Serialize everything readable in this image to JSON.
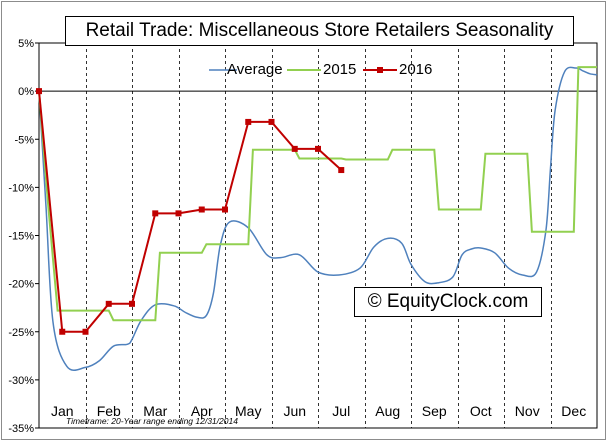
{
  "chart_data": {
    "type": "line",
    "title": "Retail Trade: Miscellaneous Store Retailers Seasonality",
    "categories": [
      "Jan",
      "Feb",
      "Mar",
      "Apr",
      "May",
      "Jun",
      "Jul",
      "Aug",
      "Sep",
      "Oct",
      "Nov",
      "Dec"
    ],
    "ylim": [
      -35,
      5
    ],
    "yticks": [
      5,
      0,
      -5,
      -10,
      -15,
      -20,
      -25,
      -30,
      -35
    ],
    "ytick_labels": [
      "5%",
      "0%",
      "-5%",
      "-10%",
      "-15%",
      "-20%",
      "-25%",
      "-30%",
      "-35%"
    ],
    "grid": "vertical dashed at month boundaries",
    "legend_position": "top-center",
    "series": [
      {
        "name": "Average",
        "color": "#4f81bd",
        "style": "smooth line",
        "x": [
          0.0,
          0.15,
          0.3,
          0.6,
          1.0,
          1.3,
          1.6,
          1.9,
          2.0,
          2.2,
          2.5,
          2.9,
          3.15,
          3.4,
          3.6,
          3.75,
          3.9,
          4.1,
          4.5,
          4.9,
          5.2,
          5.6,
          6.0,
          6.45,
          6.9,
          7.2,
          7.5,
          7.8,
          8.0,
          8.3,
          8.6,
          8.9,
          9.1,
          9.3,
          9.5,
          9.8,
          10.1,
          10.4,
          10.7,
          10.9,
          11.0,
          11.1,
          11.3,
          11.55,
          11.7,
          11.85,
          12.0
        ],
        "values": [
          0.0,
          -12.0,
          -24.0,
          -28.6,
          -28.7,
          -28.0,
          -26.5,
          -26.3,
          -25.8,
          -23.8,
          -22.2,
          -22.3,
          -23.0,
          -23.5,
          -23.3,
          -21.0,
          -16.0,
          -13.6,
          -14.2,
          -17.0,
          -17.3,
          -17.0,
          -18.8,
          -19.1,
          -18.4,
          -16.2,
          -15.3,
          -15.8,
          -18.0,
          -19.8,
          -19.9,
          -19.3,
          -17.0,
          -16.4,
          -16.3,
          -16.8,
          -18.4,
          -19.1,
          -18.8,
          -14.5,
          -8.0,
          -2.0,
          2.0,
          2.4,
          2.1,
          1.8,
          1.7
        ]
      },
      {
        "name": "2015",
        "color": "#92d050",
        "style": "step line",
        "x": [
          0.0,
          0.2,
          0.4,
          1.5,
          1.6,
          2.5,
          2.6,
          3.5,
          3.6,
          4.5,
          4.6,
          5.5,
          5.6,
          6.5,
          6.6,
          7.5,
          7.6,
          8.5,
          8.6,
          9.5,
          9.6,
          10.5,
          10.6,
          11.5,
          11.6,
          12.0
        ],
        "values": [
          0.0,
          -12.0,
          -22.8,
          -22.8,
          -23.8,
          -23.8,
          -16.8,
          -16.8,
          -15.9,
          -15.9,
          -6.1,
          -6.1,
          -7.0,
          -7.0,
          -7.1,
          -7.1,
          -6.1,
          -6.1,
          -12.3,
          -12.3,
          -6.5,
          -6.5,
          -14.6,
          -14.6,
          2.5,
          2.5
        ]
      },
      {
        "name": "2016",
        "color": "#c00000",
        "style": "line with square markers",
        "x": [
          0.0,
          0.5,
          1.0,
          1.5,
          2.0,
          2.5,
          3.0,
          3.5,
          4.0,
          4.5,
          5.0,
          5.5,
          6.0,
          6.5
        ],
        "values": [
          0.0,
          -25.0,
          -25.0,
          -22.1,
          -22.1,
          -12.7,
          -12.7,
          -12.3,
          -12.3,
          -3.2,
          -3.2,
          -6.0,
          -6.0,
          -8.2
        ]
      }
    ]
  },
  "watermark": "© EquityClock.com",
  "footnote": "Timeframe: 20-Year range ending 12/31/2014"
}
